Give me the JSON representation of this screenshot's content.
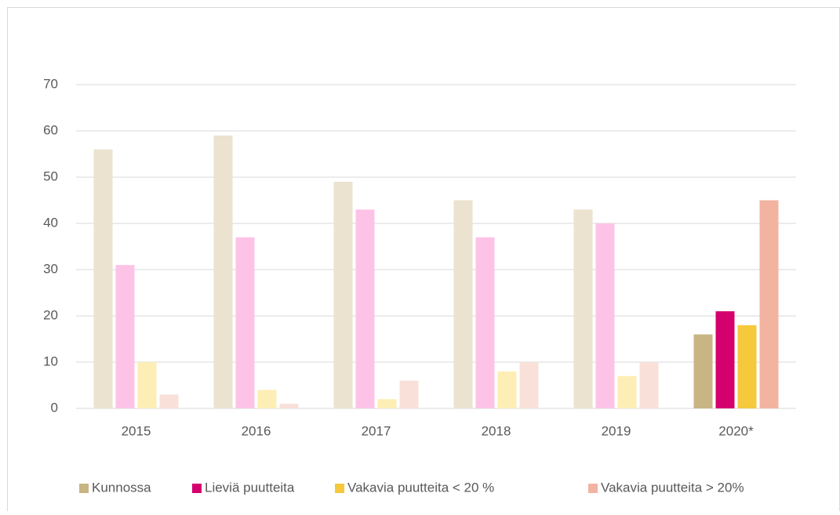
{
  "chart_data": {
    "type": "bar",
    "categories": [
      "2015",
      "2016",
      "2017",
      "2018",
      "2019",
      "2020*"
    ],
    "series": [
      {
        "name": "Kunnossa",
        "color": "#c9b584",
        "colors": [
          "#ebe2cf",
          "#ebe2cf",
          "#ebe2cf",
          "#ebe2cf",
          "#ebe2cf",
          "#c9b584"
        ],
        "values": [
          56,
          59,
          49,
          45,
          43,
          16
        ]
      },
      {
        "name": "Lieviä puutteita",
        "color": "#d4006e",
        "colors": [
          "#fdc3e7",
          "#fdc3e7",
          "#fdc3e7",
          "#fdc3e7",
          "#fdc3e7",
          "#d4006e"
        ],
        "values": [
          31,
          37,
          43,
          37,
          40,
          21
        ]
      },
      {
        "name": "Vakavia puutteita < 20 %",
        "color": "#f6c93c",
        "colors": [
          "#fdeeb5",
          "#fdeeb5",
          "#fdeeb5",
          "#fdeeb5",
          "#fdeeb5",
          "#f6c93c"
        ],
        "values": [
          10,
          4,
          2,
          8,
          7,
          18
        ]
      },
      {
        "name": "Vakavia puutteita > 20%",
        "color": "#f2b3a1",
        "colors": [
          "#f9e0d9",
          "#f9e0d9",
          "#f9e0d9",
          "#f9e0d9",
          "#f9e0d9",
          "#f2b3a1"
        ],
        "values": [
          3,
          1,
          6,
          10,
          10,
          45
        ]
      }
    ],
    "ylim": [
      0,
      70
    ],
    "yticks": [
      0,
      10,
      20,
      30,
      40,
      50,
      60,
      70
    ],
    "grid": true,
    "legend": "bottom"
  }
}
